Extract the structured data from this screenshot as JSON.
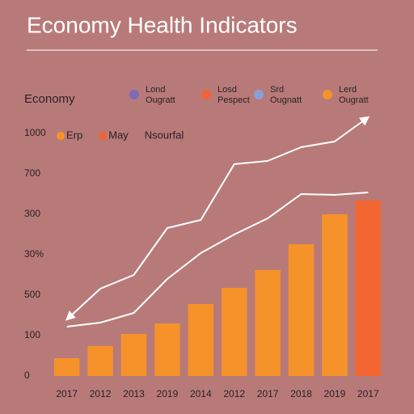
{
  "chart_data": {
    "type": "bar",
    "title": "Economy Health Indicators",
    "ylabel": "Economy",
    "legend": [
      {
        "label": [
          "Lond",
          "Ougratt"
        ],
        "color": "#7d6bb6"
      },
      {
        "label": [
          "Losd",
          "Pespect"
        ],
        "color": "#f0643c"
      },
      {
        "label": [
          "Srd",
          "Ougnatt"
        ],
        "color": "#8a9fd6"
      },
      {
        "label": [
          "Lerd",
          "Ougratt"
        ],
        "color": "#f5922a"
      }
    ],
    "categories": [
      "2017",
      "2012",
      "2013",
      "2019",
      "2014",
      "2012",
      "2017",
      "2018",
      "2019",
      "2017"
    ],
    "series": [
      {
        "name": "Erp",
        "type": "bar",
        "color": "#f5922a",
        "values": [
          44,
          74,
          104,
          130,
          178,
          218,
          262,
          326,
          400,
          null
        ]
      },
      {
        "name": "May",
        "type": "bar",
        "color": "#f26430",
        "values": [
          null,
          null,
          null,
          null,
          null,
          null,
          null,
          null,
          null,
          434
        ]
      },
      {
        "name": "Nsourfal",
        "type": "line",
        "color": "#ffffff",
        "arrows": true,
        "values": [
          140,
          216,
          250,
          366,
          386,
          524,
          532,
          566,
          580,
          640
        ]
      },
      {
        "type": "line",
        "color": "#ffffff",
        "values": [
          122,
          132,
          156,
          240,
          304,
          350,
          390,
          450,
          448,
          454
        ]
      }
    ],
    "ylim": [
      0,
      650
    ],
    "yticks": [
      {
        "value": 600,
        "label": "1000"
      },
      {
        "value": 500,
        "label": "700"
      },
      {
        "value": 400,
        "label": "300"
      },
      {
        "value": 300,
        "label": "30%"
      },
      {
        "value": 200,
        "label": "500"
      },
      {
        "value": 100,
        "label": "100"
      },
      0
    ],
    "grid": false
  }
}
